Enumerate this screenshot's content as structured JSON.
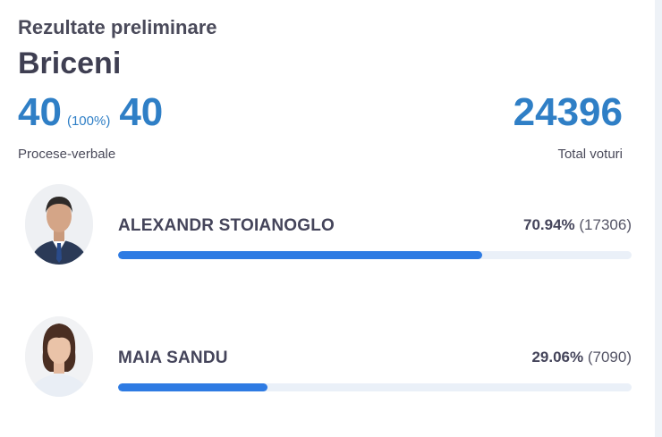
{
  "header": {
    "subtitle": "Rezultate preliminare",
    "region": "Briceni"
  },
  "stats": {
    "processed": "40",
    "processed_pct": "(100%)",
    "total_pv": "40",
    "pv_label": "Procese-verbale",
    "total_votes": "24396",
    "votes_label": "Total voturi"
  },
  "candidates": [
    {
      "name": "ALEXANDR STOIANOGLO",
      "percent_label": "70.94%",
      "votes_label": "(17306)",
      "share": 0.7094
    },
    {
      "name": "MAIA SANDU",
      "percent_label": "29.06%",
      "votes_label": "(7090)",
      "share": 0.2906
    }
  ],
  "colors": {
    "accent": "#2f7fc6",
    "bar": "#2e7be3",
    "track": "#eaf0f8"
  }
}
